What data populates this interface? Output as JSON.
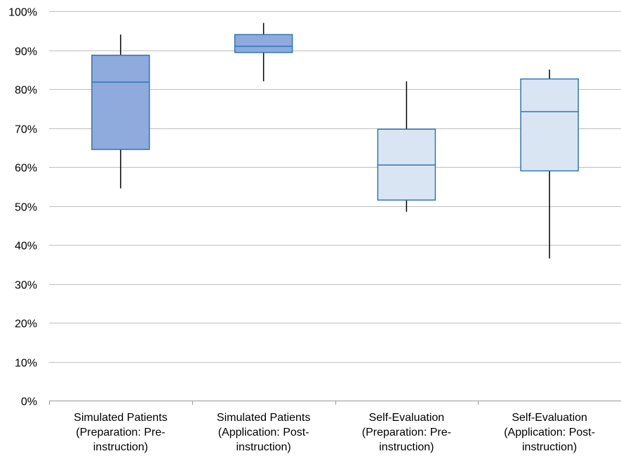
{
  "chart_data": {
    "type": "boxplot",
    "title": "",
    "xlabel": "",
    "ylabel": "",
    "ylim": [
      0,
      100
    ],
    "yticks": [
      0,
      10,
      20,
      30,
      40,
      50,
      60,
      70,
      80,
      90,
      100
    ],
    "ytick_labels": [
      "0%",
      "10%",
      "20%",
      "30%",
      "40%",
      "50%",
      "60%",
      "70%",
      "80%",
      "90%",
      "100%"
    ],
    "grid": true,
    "legend": "none",
    "categories": [
      [
        "Simulated Patients",
        "(Preparation: Pre-",
        "instruction)"
      ],
      [
        "Simulated Patients",
        "(Application: Post-",
        "instruction)"
      ],
      [
        "Self-Evaluation",
        "(Preparation: Pre-",
        "instruction)"
      ],
      [
        "Self-Evaluation",
        "(Application: Post-",
        "instruction)"
      ]
    ],
    "boxes": [
      {
        "min": 54.5,
        "q1": 64.5,
        "median": 81.8,
        "q3": 88.7,
        "max": 94,
        "fill": "#8faadc"
      },
      {
        "min": 82,
        "q1": 89.4,
        "median": 91,
        "q3": 94,
        "max": 97,
        "fill": "#8faadc"
      },
      {
        "min": 48.5,
        "q1": 51.5,
        "median": 60.5,
        "q3": 69.7,
        "max": 82,
        "fill": "#dae5f4"
      },
      {
        "min": 36.5,
        "q1": 59,
        "median": 74.2,
        "q3": 82.6,
        "max": 85,
        "fill": "#dae5f4"
      }
    ],
    "colors": {
      "box_border": "#2e75b6",
      "whisker": "#000000",
      "grid": "#bfbfbf",
      "axis": "#999999"
    }
  }
}
